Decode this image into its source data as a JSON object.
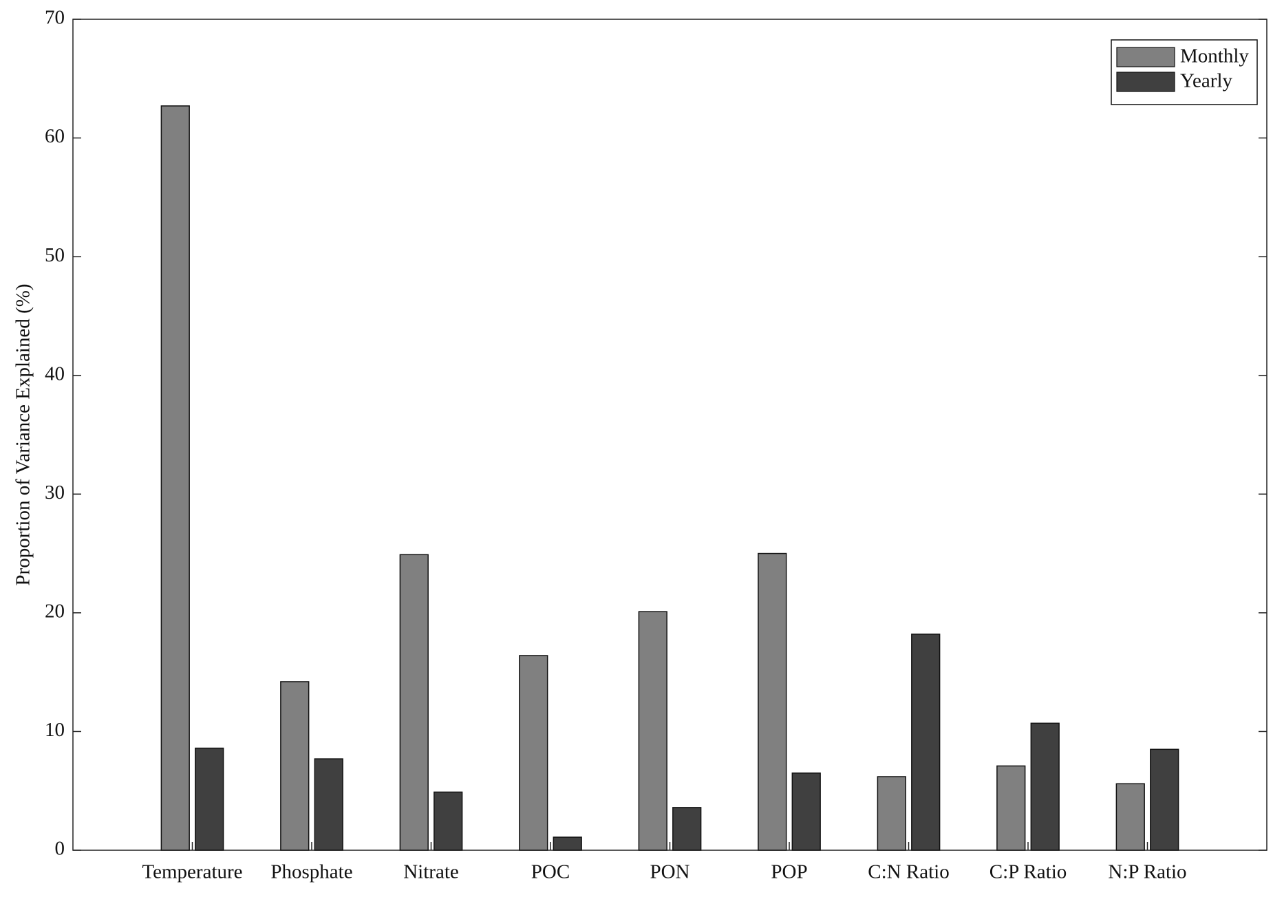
{
  "chart_data": {
    "type": "bar",
    "y_label": "Proportion of Variance Explained (%)",
    "categories": [
      "Temperature",
      "Phosphate",
      "Nitrate",
      "POC",
      "PON",
      "POP",
      "C:N Ratio",
      "C:P Ratio",
      "N:P Ratio"
    ],
    "series": [
      {
        "name": "Monthly",
        "color": "#808080",
        "values": [
          62.7,
          14.2,
          24.9,
          16.4,
          20.1,
          25.0,
          6.2,
          7.1,
          5.6
        ]
      },
      {
        "name": "Yearly",
        "color": "#404040",
        "values": [
          8.6,
          7.7,
          4.9,
          1.1,
          3.6,
          6.5,
          18.2,
          10.7,
          8.5
        ]
      }
    ],
    "ylim": [
      0,
      70
    ],
    "yticks": [
      0,
      10,
      20,
      30,
      40,
      50,
      60,
      70
    ],
    "legend": "top-right",
    "grid": false
  }
}
